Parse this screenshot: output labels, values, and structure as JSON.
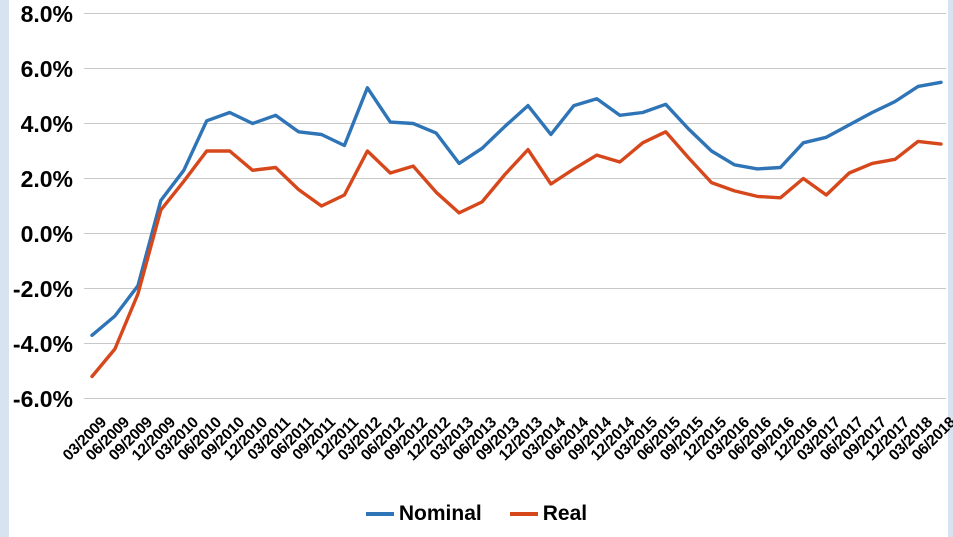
{
  "chart_data": {
    "type": "line",
    "title": "",
    "xlabel": "",
    "ylabel": "",
    "categories": [
      "03/2009",
      "06/2009",
      "09/2009",
      "12/2009",
      "03/2010",
      "06/2010",
      "09/2010",
      "12/2010",
      "03/2011",
      "06/2011",
      "09/2011",
      "12/2011",
      "03/2012",
      "06/2012",
      "09/2012",
      "12/2012",
      "03/2013",
      "06/2013",
      "09/2013",
      "12/2013",
      "03/2014",
      "06/2014",
      "09/2014",
      "12/2014",
      "03/2015",
      "06/2015",
      "09/2015",
      "12/2015",
      "03/2016",
      "06/2016",
      "09/2016",
      "12/2016",
      "03/2017",
      "06/2017",
      "09/2017",
      "12/2017",
      "03/2018",
      "06/2018"
    ],
    "series": [
      {
        "name": "Nominal",
        "color": "#2E74B6",
        "values": [
          -3.7,
          -3.0,
          -1.9,
          1.2,
          2.3,
          4.1,
          4.4,
          4.0,
          4.3,
          3.7,
          3.6,
          3.2,
          5.3,
          4.05,
          4.0,
          3.65,
          2.55,
          3.1,
          3.9,
          4.65,
          3.6,
          4.65,
          4.9,
          4.3,
          4.4,
          4.7,
          3.8,
          3.0,
          2.5,
          2.35,
          2.4,
          3.3,
          3.5,
          3.95,
          4.4,
          4.8,
          5.35,
          5.5
        ]
      },
      {
        "name": "Real",
        "color": "#D6481C",
        "values": [
          -5.2,
          -4.2,
          -2.2,
          0.85,
          1.9,
          3.0,
          3.0,
          2.3,
          2.4,
          1.6,
          1.0,
          1.4,
          3.0,
          2.2,
          2.45,
          1.5,
          0.75,
          1.15,
          2.15,
          3.05,
          1.8,
          2.35,
          2.85,
          2.6,
          3.3,
          3.7,
          2.75,
          1.85,
          1.55,
          1.35,
          1.3,
          2.0,
          1.4,
          2.2,
          2.55,
          2.7,
          3.35,
          3.25
        ]
      }
    ],
    "ylim": [
      -6,
      8
    ],
    "y_tick_step": 2,
    "y_tick_labels": [
      "8.0%",
      "6.0%",
      "4.0%",
      "2.0%",
      "0.0%",
      "-2.0%",
      "-4.0%",
      "-6.0%"
    ],
    "y_tick_values": [
      8,
      6,
      4,
      2,
      0,
      -2,
      -4,
      -6
    ],
    "grid": "horizontal",
    "legend_position": "bottom"
  },
  "legend": {
    "items": [
      {
        "label": "Nominal",
        "color": "#2E74B6"
      },
      {
        "label": "Real",
        "color": "#D6481C"
      }
    ]
  },
  "colors": {
    "gridline": "#C9C9C9",
    "label_text": "#000000",
    "edge_strip": "#D8E3F0",
    "background": "#FFFFFF"
  }
}
